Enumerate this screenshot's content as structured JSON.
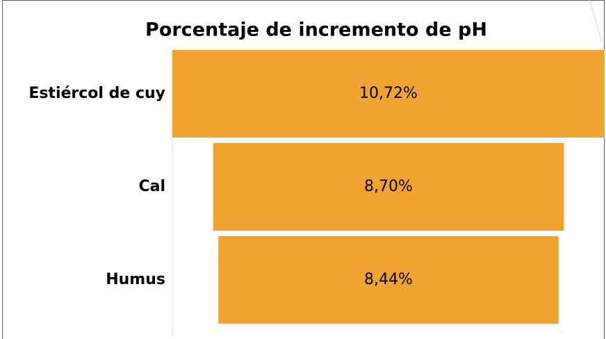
{
  "chart_data": {
    "type": "funnel",
    "title": "Porcentaje de incremento de pH",
    "categories": [
      "Estiércol de cuy",
      "Cal",
      "Humus"
    ],
    "values": [
      10.72,
      8.7,
      8.44
    ],
    "value_labels": [
      "10,72%",
      "8,70%",
      "8,44%"
    ],
    "color": "#f0a330"
  }
}
